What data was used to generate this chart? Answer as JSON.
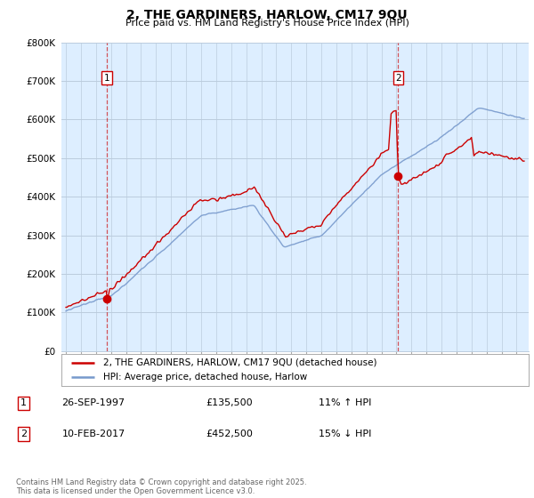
{
  "title": "2, THE GARDINERS, HARLOW, CM17 9QU",
  "subtitle": "Price paid vs. HM Land Registry's House Price Index (HPI)",
  "legend_label_red": "2, THE GARDINERS, HARLOW, CM17 9QU (detached house)",
  "legend_label_blue": "HPI: Average price, detached house, Harlow",
  "annotation1_date": "26-SEP-1997",
  "annotation1_price": "£135,500",
  "annotation1_hpi": "11% ↑ HPI",
  "annotation2_date": "10-FEB-2017",
  "annotation2_price": "£452,500",
  "annotation2_hpi": "15% ↓ HPI",
  "footer": "Contains HM Land Registry data © Crown copyright and database right 2025.\nThis data is licensed under the Open Government Licence v3.0.",
  "red_color": "#cc0000",
  "blue_color": "#7799cc",
  "bg_chart": "#ddeeff",
  "bg_color": "#ffffff",
  "grid_color": "#bbccdd",
  "ylim": [
    0,
    800000
  ],
  "yticks": [
    0,
    100000,
    200000,
    300000,
    400000,
    500000,
    600000,
    700000,
    800000
  ],
  "ytick_labels": [
    "£0",
    "£100K",
    "£200K",
    "£300K",
    "£400K",
    "£500K",
    "£600K",
    "£700K",
    "£800K"
  ],
  "sale1_x": 1997.73,
  "sale1_y": 135500,
  "sale2_x": 2017.12,
  "sale2_y": 452500,
  "xlim_left": 1994.7,
  "xlim_right": 2025.8
}
